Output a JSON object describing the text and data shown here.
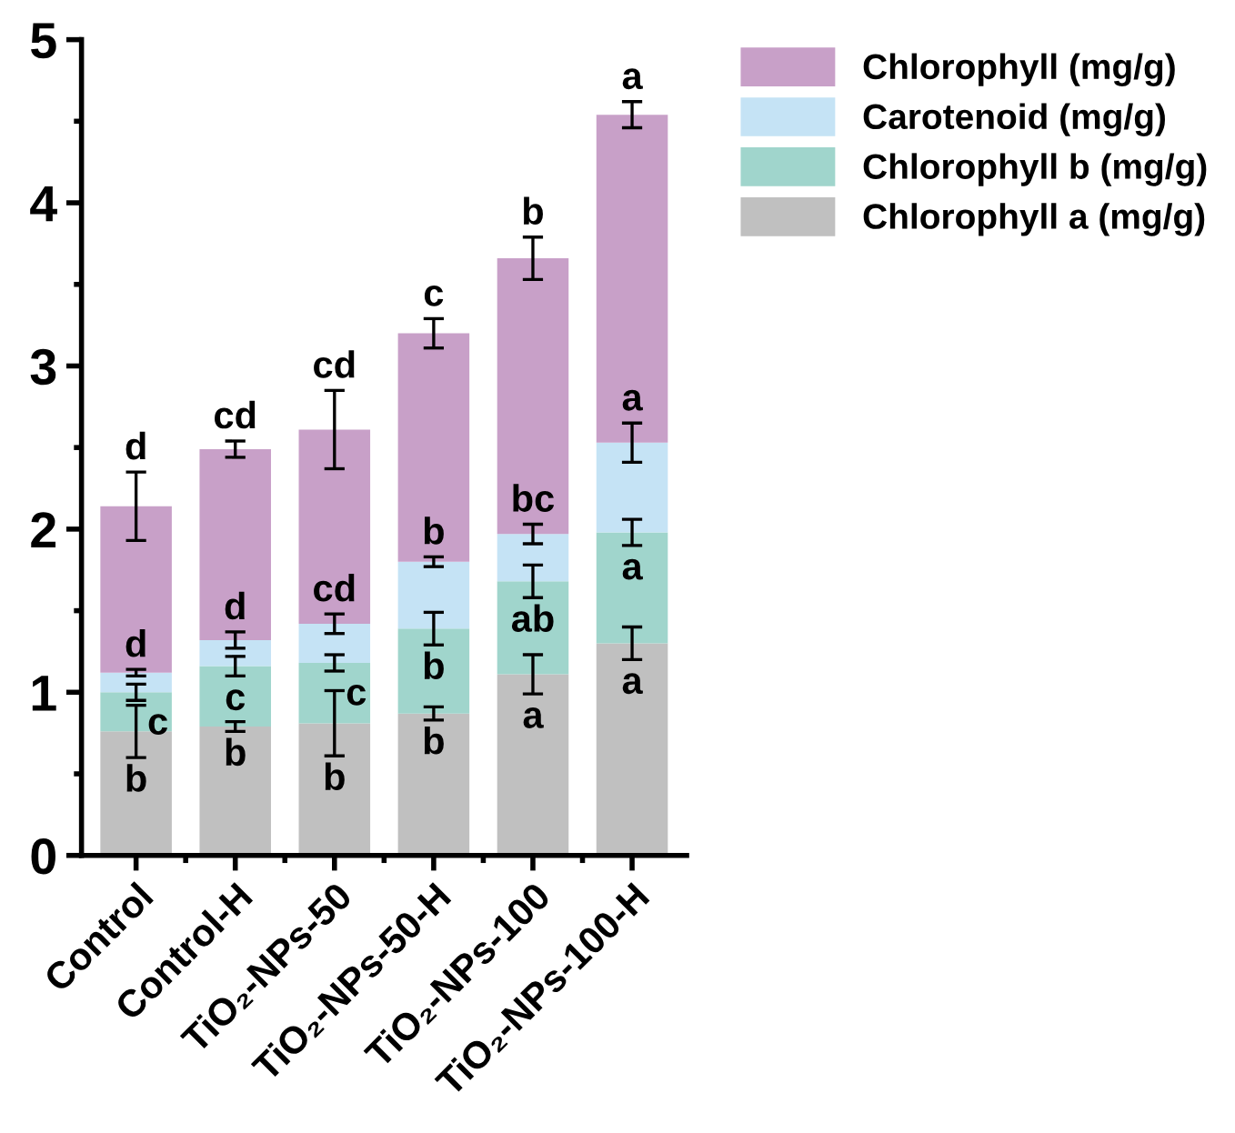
{
  "chart_data": {
    "type": "bar",
    "stacked": true,
    "categories": [
      "Control",
      "Control-H",
      "TiO₂-NPs-50",
      "TiO₂-NPs-50-H",
      "TiO₂-NPs-100",
      "TiO₂-NPs-100-H"
    ],
    "series": [
      {
        "name": "Chlorophyll a (mg/g)",
        "color": "#c0c0c0",
        "values": [
          0.76,
          0.79,
          0.81,
          0.87,
          1.11,
          1.3
        ],
        "errors": [
          0.16,
          0.03,
          0.2,
          0.04,
          0.12,
          0.1
        ]
      },
      {
        "name": "Chlorophyll b (mg/g)",
        "color": "#a0d5cc",
        "values": [
          0.24,
          0.37,
          0.37,
          0.52,
          0.57,
          0.68
        ],
        "errors": [
          0.05,
          0.06,
          0.05,
          0.1,
          0.1,
          0.08
        ]
      },
      {
        "name": "Carotenoid (mg/g)",
        "color": "#c5e3f5",
        "values": [
          0.12,
          0.16,
          0.24,
          0.41,
          0.29,
          0.55
        ],
        "errors": [
          0.02,
          0.05,
          0.06,
          0.03,
          0.06,
          0.12
        ]
      },
      {
        "name": "Chlorophyll (mg/g)",
        "color": "#c8a0c8",
        "values": [
          1.02,
          1.17,
          1.19,
          1.4,
          1.69,
          2.01
        ],
        "errors": [
          0.21,
          0.05,
          0.24,
          0.09,
          0.13,
          0.08
        ]
      }
    ],
    "ylim": [
      0,
      5
    ],
    "yticks": [
      0,
      1,
      2,
      3,
      4,
      5
    ],
    "grid": false,
    "legend": "top right",
    "annotations": [
      "b",
      "c",
      "d",
      "d",
      "b",
      "c",
      "d",
      "cd",
      "b",
      "c",
      "cd",
      "cd",
      "b",
      "b",
      "b",
      "c",
      "a",
      "ab",
      "bc",
      "b",
      "a",
      "a",
      "a",
      "a"
    ]
  }
}
